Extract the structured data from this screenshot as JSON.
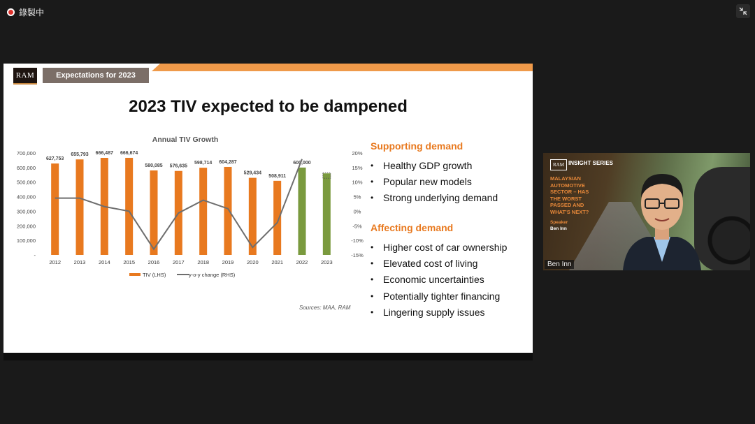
{
  "top_bar": {
    "recording_label": "錄製中",
    "exit_fullscreen_icon": "exit-fullscreen-icon"
  },
  "slide": {
    "logo_text": "RAM",
    "section_tag": "Expectations for 2023",
    "title": "2023 TIV expected to be dampened",
    "sources": "Sources: MAA, RAM",
    "accent_color": "#e8791f",
    "band_color": "#ef9a4a",
    "supporting": {
      "heading": "Supporting demand",
      "items": [
        "Healthy GDP growth",
        "Popular new models",
        "Strong underlying demand"
      ]
    },
    "affecting": {
      "heading": "Affecting demand",
      "items": [
        "Higher cost of car ownership",
        "Elevated cost of living",
        "Economic uncertainties",
        "Potentially tighter financing",
        "Lingering supply issues"
      ]
    }
  },
  "chart_data": {
    "type": "bar",
    "title": "Annual TIV Growth",
    "categories": [
      "2012",
      "2013",
      "2014",
      "2015",
      "2016",
      "2017",
      "2018",
      "2019",
      "2020",
      "2021",
      "2022",
      "2023"
    ],
    "series": [
      {
        "name": "TIV (LHS)",
        "type": "bar",
        "axis": "left",
        "values": [
          627753,
          655793,
          666487,
          666674,
          580085,
          576635,
          598714,
          604287,
          529434,
          508911,
          600000,
          560000
        ],
        "data_labels": [
          "627,753",
          "655,793",
          "666,487",
          "666,674",
          "580,085",
          "576,635",
          "598,714",
          "604,287",
          "529,434",
          "508,911",
          "600,000",
          ""
        ],
        "colors": [
          "#e8791f",
          "#e8791f",
          "#e8791f",
          "#e8791f",
          "#e8791f",
          "#e8791f",
          "#e8791f",
          "#e8791f",
          "#e8791f",
          "#e8791f",
          "#7a9a3e",
          "#7a9a3e"
        ]
      },
      {
        "name": "y-o-y change (RHS)",
        "type": "line",
        "axis": "right",
        "values": [
          4.5,
          4.5,
          1.6,
          0.0,
          -13.0,
          -0.6,
          3.8,
          0.9,
          -12.4,
          -3.9,
          17.9,
          null
        ],
        "color": "#6e6e6e"
      }
    ],
    "left_axis": {
      "ylim": [
        0,
        700000
      ],
      "ticks": [
        "-",
        "100,000",
        "200,000",
        "300,000",
        "400,000",
        "500,000",
        "600,000",
        "700,000"
      ]
    },
    "right_axis": {
      "ylim": [
        -15,
        20
      ],
      "ticks": [
        "-15%",
        "-10%",
        "-5%",
        "0%",
        "5%",
        "10%",
        "15%",
        "20%"
      ]
    },
    "legend_position": "bottom",
    "grid": false
  },
  "video": {
    "logo_text": "RAM",
    "series_label": "INSIGHT SERIES",
    "title": "MALAYSIAN\nAUTOMOTIVE\nSECTOR – HAS\nTHE WORST\nPASSED AND\nWHAT'S NEXT?",
    "speaker_label": "Speaker",
    "speaker_name": "Ben Inn",
    "participant_name": "Ben Inn"
  }
}
